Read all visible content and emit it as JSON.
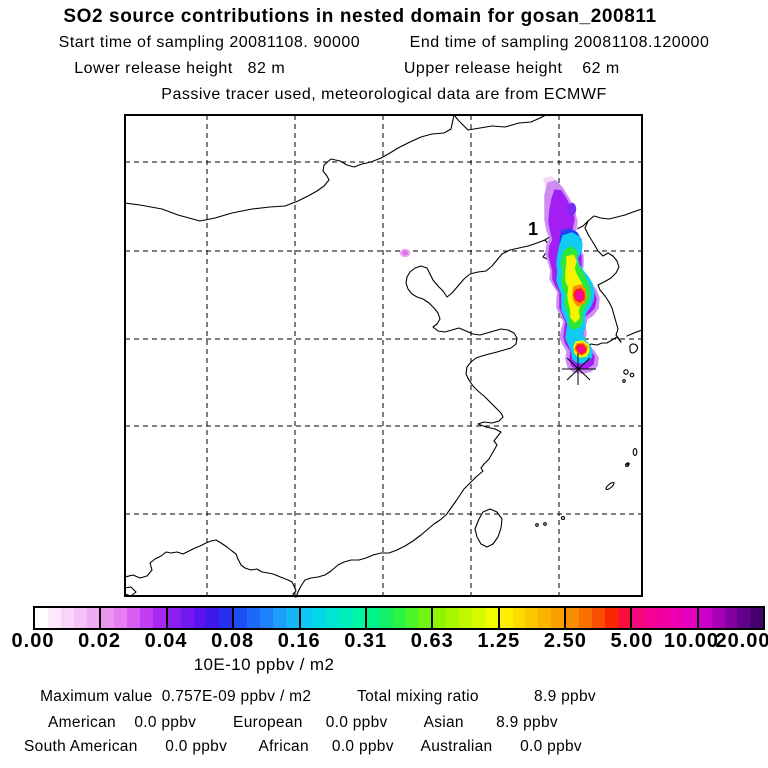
{
  "header": {
    "title": "SO2 source contributions in nested domain for gosan_200811",
    "line2": "Start time of sampling 20081108. 90000          End time of sampling 20081108.120000",
    "line3": "Lower release height   82 m                        Upper release height    62 m",
    "line4": "Passive tracer used, meteorological data are from ECMWF"
  },
  "map": {
    "release_point_label": "1",
    "receptor_marker": "asterisk-at-gosan"
  },
  "colorbar": {
    "tick_labels": [
      "0.00",
      "0.02",
      "0.04",
      "0.08",
      "0.16",
      "0.31",
      "0.63",
      "1.25",
      "2.50",
      "5.00",
      "10.00",
      "20.00"
    ],
    "unit_label": "10E-10 ppbv / m2",
    "segment_colors": [
      [
        "#ffffff",
        "#fceafc",
        "#f8d5f8",
        "#f4c0f6",
        "#f0abf4"
      ],
      [
        "#ec96f2",
        "#e77ef0",
        "#d75ef2",
        "#c23ef4",
        "#a928f2"
      ],
      [
        "#8c1ef2",
        "#7318f0",
        "#5a14ee",
        "#4018ec",
        "#2830f0"
      ],
      [
        "#1e4ef6",
        "#1e68f8",
        "#1e82fa",
        "#1e9cfa",
        "#14b6f8"
      ],
      [
        "#0ccaf4",
        "#04d8e8",
        "#00e4d4",
        "#00eebe",
        "#00f6a6"
      ],
      [
        "#00f288",
        "#14f066",
        "#2cf244",
        "#4cf428",
        "#70f614"
      ],
      [
        "#90f400",
        "#a8f600",
        "#c0f800",
        "#d8fa00",
        "#f0fc00"
      ],
      [
        "#fcf000",
        "#fcdc00",
        "#fbc800",
        "#fab400",
        "#f9a000"
      ],
      [
        "#f88c00",
        "#f87000",
        "#f85000",
        "#f82800",
        "#f8103c"
      ],
      [
        "#f8087c",
        "#f40492",
        "#f000a2",
        "#ec00b2",
        "#e400c0"
      ],
      [
        "#cc00c8",
        "#a800b4",
        "#8400a0",
        "#62008c",
        "#440070"
      ]
    ]
  },
  "stats": {
    "row1": "Maximum value  0.757E-09 ppbv / m2          Total mixing ratio            8.9 ppbv",
    "row2": "American    0.0 ppbv        European     0.0 ppbv        Asian       8.9 ppbv",
    "row3": "South American      0.0 ppbv       African     0.0 ppbv      Australian      0.0 ppbv"
  },
  "palette": {
    "coast": "#000000",
    "grid": "#000000",
    "plume_halo": "#f3d6fa",
    "plume_fringe": "#cf8df3",
    "plume_purple": "#a21ef2",
    "plume_violet_spot": "#7b2cf0",
    "plume_blue": "#2040f5",
    "plume_cyan": "#10ccf5",
    "plume_green": "#2ce838",
    "plume_yellow": "#f6f400",
    "plume_orange": "#ff8c00",
    "plume_red": "#f81e1e",
    "plume_pink": "#f5089c",
    "faint_dot_outer": "#eba9f0",
    "faint_dot_inner": "#df72ee"
  },
  "chart_data": {
    "type": "heatmap",
    "title": "SO2 source contributions in nested domain for gosan_200811",
    "start_time_of_sampling": "20081108. 90000",
    "end_time_of_sampling": "20081108.120000",
    "lower_release_height_m": 82,
    "upper_release_height_m": 62,
    "note": "Passive tracer used, meteorological data are from ECMWF",
    "colorbar_levels": [
      0.0,
      0.02,
      0.04,
      0.08,
      0.16,
      0.31,
      0.63,
      1.25,
      2.5,
      5.0,
      10.0,
      20.0
    ],
    "colorbar_unit": "10E-10 ppbv / m2",
    "maximum_value": "0.757E-09 ppbv / m2",
    "total_mixing_ratio_ppbv": 8.9,
    "source_contributions_ppbv": {
      "American": 0.0,
      "European": 0.0,
      "Asian": 8.9,
      "South American": 0.0,
      "African": 0.0,
      "Australian": 0.0
    },
    "release_points": [
      {
        "label": "1",
        "location": "near Yalu river mouth / Korea Bay"
      }
    ],
    "layout": "map of East Asia with SO2 plume stretching N-S over the Korean peninsula; receptor asterisk near Jeju; dashed lat-lon grid; legend colorbar below map"
  }
}
